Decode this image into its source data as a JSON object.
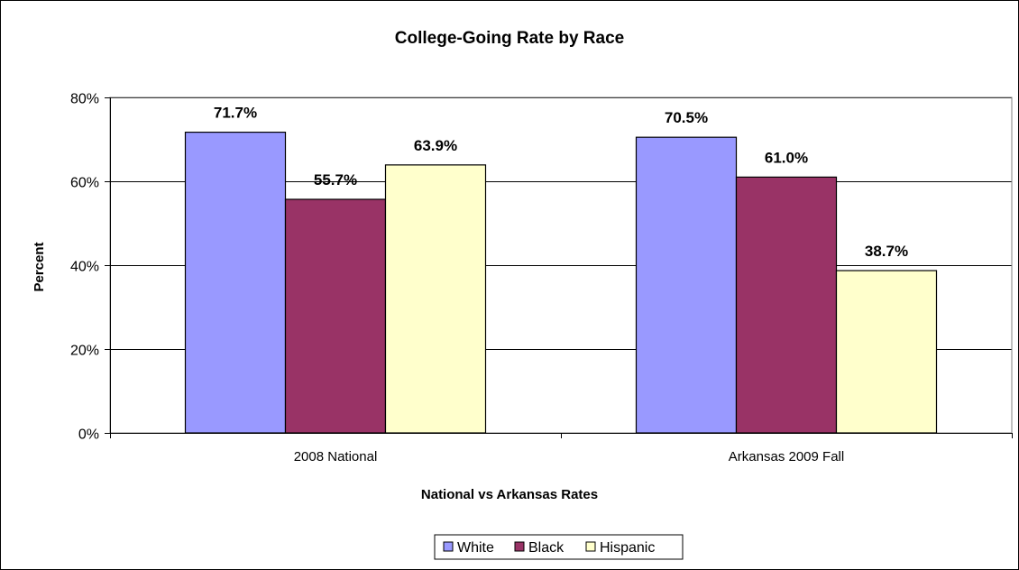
{
  "chart_data": {
    "type": "bar",
    "title": "College-Going Rate by Race",
    "xlabel": "National vs Arkansas Rates",
    "ylabel": "Percent",
    "categories": [
      "2008 National",
      "Arkansas 2009 Fall"
    ],
    "series": [
      {
        "name": "White",
        "values": [
          71.7,
          70.5
        ],
        "labels": [
          "71.7%",
          "70.5%"
        ],
        "color": "#9999ff"
      },
      {
        "name": "Black",
        "values": [
          55.7,
          61.0
        ],
        "labels": [
          "55.7%",
          "61.0%"
        ],
        "color": "#993366"
      },
      {
        "name": "Hispanic",
        "values": [
          63.9,
          38.7
        ],
        "labels": [
          "63.9%",
          "38.7%"
        ],
        "color": "#ffffcc"
      }
    ],
    "ylim": [
      0,
      80
    ],
    "yticks": [
      0,
      20,
      40,
      60,
      80
    ],
    "ytick_labels": [
      "0%",
      "20%",
      "40%",
      "60%",
      "80%"
    ],
    "grid": true,
    "legend_position": "bottom"
  }
}
